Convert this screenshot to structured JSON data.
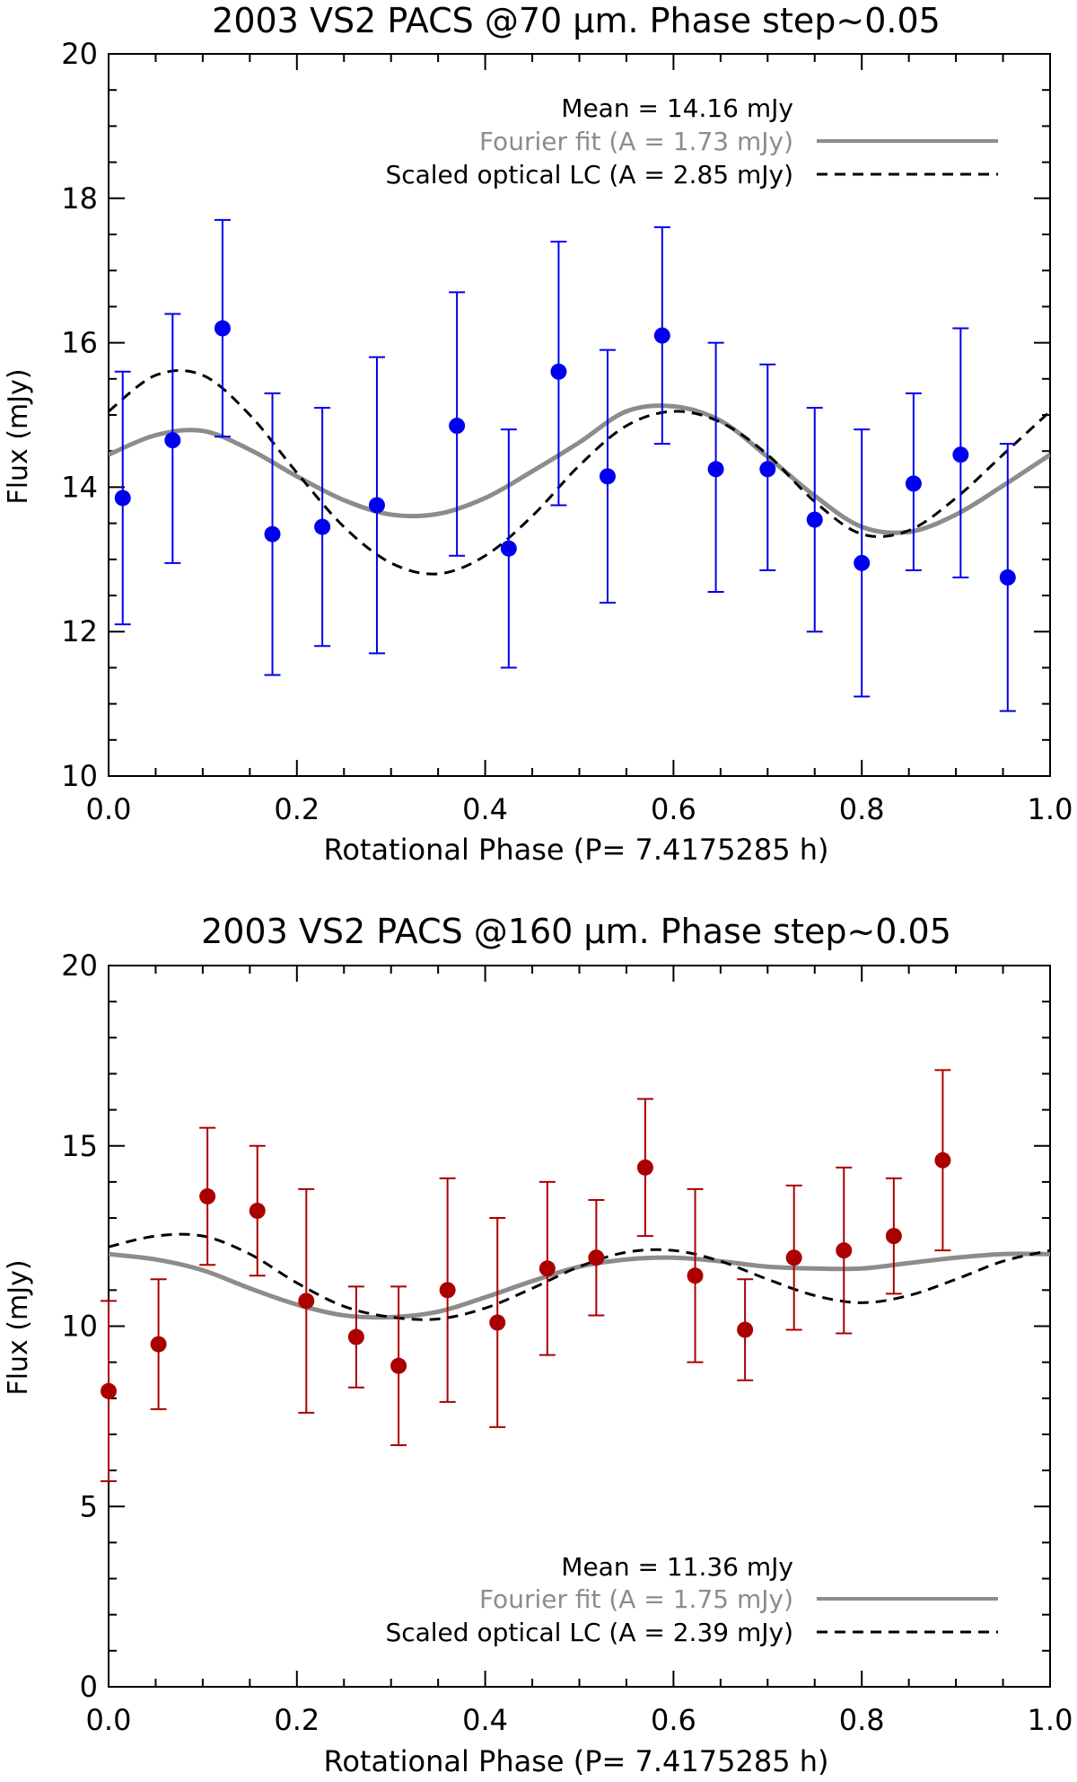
{
  "chart_data": [
    {
      "type": "scatter",
      "title": "2003 VS2 PACS @70 μm. Phase step~0.05",
      "xlabel": "Rotational Phase (P= 7.4175285 h)",
      "ylabel": "Flux (mJy)",
      "xlim": [
        0.0,
        1.0
      ],
      "ylim": [
        10,
        20
      ],
      "x_ticks": [
        0.0,
        0.2,
        0.4,
        0.6,
        0.8,
        1.0
      ],
      "x_tick_labels": [
        "0.0",
        "0.2",
        "0.4",
        "0.6",
        "0.8",
        "1.0"
      ],
      "y_ticks": [
        10,
        12,
        14,
        16,
        18,
        20
      ],
      "y_tick_labels": [
        "10",
        "12",
        "14",
        "16",
        "18",
        "20"
      ],
      "grid": false,
      "legend_position": "top-right",
      "legend": {
        "mean_label": "Mean = 14.16 mJy",
        "fourier_label": "Fourier fit (A = 1.73 mJy)",
        "optical_label": "Scaled optical LC (A = 2.85 mJy)"
      },
      "colors": {
        "points": "#0000ee",
        "fourier": "#8c8c8c",
        "optical": "#000000"
      },
      "series": [
        {
          "kind": "points_with_errors",
          "x": [
            0.015,
            0.068,
            0.121,
            0.174,
            0.227,
            0.285,
            0.37,
            0.425,
            0.478,
            0.53,
            0.588,
            0.645,
            0.7,
            0.75,
            0.8,
            0.855,
            0.905,
            0.955
          ],
          "y": [
            13.85,
            14.65,
            16.2,
            13.35,
            13.45,
            13.75,
            14.85,
            13.15,
            15.6,
            14.15,
            16.1,
            14.25,
            14.25,
            13.55,
            12.95,
            14.05,
            14.45,
            12.75
          ],
          "yerr_low": [
            12.1,
            12.95,
            14.7,
            11.4,
            11.8,
            11.7,
            13.05,
            11.5,
            13.75,
            12.4,
            14.6,
            12.55,
            12.85,
            12.0,
            11.1,
            12.85,
            12.75,
            10.9
          ],
          "yerr_high": [
            15.6,
            16.4,
            17.7,
            15.3,
            15.1,
            15.8,
            16.7,
            14.8,
            17.4,
            15.9,
            17.6,
            16.0,
            15.7,
            15.1,
            14.8,
            15.3,
            16.2,
            14.6
          ]
        },
        {
          "kind": "fourier_curve",
          "x": [
            0.0,
            0.05,
            0.1,
            0.15,
            0.2,
            0.25,
            0.3,
            0.35,
            0.4,
            0.45,
            0.5,
            0.55,
            0.6,
            0.65,
            0.7,
            0.75,
            0.8,
            0.85,
            0.9,
            0.95,
            1.0
          ],
          "y": [
            14.45,
            14.72,
            14.78,
            14.52,
            14.15,
            13.82,
            13.62,
            13.63,
            13.85,
            14.22,
            14.62,
            15.05,
            15.12,
            14.92,
            14.42,
            13.88,
            13.45,
            13.38,
            13.62,
            14.02,
            14.45
          ]
        },
        {
          "kind": "optical_curve",
          "x": [
            0.0,
            0.05,
            0.1,
            0.15,
            0.2,
            0.25,
            0.3,
            0.35,
            0.4,
            0.45,
            0.5,
            0.55,
            0.6,
            0.65,
            0.7,
            0.75,
            0.8,
            0.85,
            0.9,
            0.95,
            1.0
          ],
          "y": [
            15.05,
            15.55,
            15.55,
            15.0,
            14.2,
            13.45,
            12.95,
            12.8,
            13.05,
            13.6,
            14.3,
            14.85,
            15.05,
            14.9,
            14.45,
            13.8,
            13.35,
            13.4,
            13.85,
            14.45,
            15.05
          ]
        }
      ]
    },
    {
      "type": "scatter",
      "title": "2003 VS2 PACS @160 μm. Phase step~0.05",
      "xlabel": "Rotational Phase (P= 7.4175285 h)",
      "ylabel": "Flux (mJy)",
      "xlim": [
        0.0,
        1.0
      ],
      "ylim": [
        0,
        20
      ],
      "x_ticks": [
        0.0,
        0.2,
        0.4,
        0.6,
        0.8,
        1.0
      ],
      "x_tick_labels": [
        "0.0",
        "0.2",
        "0.4",
        "0.6",
        "0.8",
        "1.0"
      ],
      "y_ticks": [
        0,
        5,
        10,
        15,
        20
      ],
      "y_tick_labels": [
        "0",
        "5",
        "10",
        "15",
        "20"
      ],
      "grid": false,
      "legend_position": "bottom-right",
      "legend": {
        "mean_label": "Mean = 11.36 mJy",
        "fourier_label": "Fourier fit (A = 1.75 mJy)",
        "optical_label": "Scaled optical LC (A = 2.39 mJy)"
      },
      "colors": {
        "points": "#aa0000",
        "fourier": "#8c8c8c",
        "optical": "#000000"
      },
      "series": [
        {
          "kind": "points_with_errors",
          "x": [
            0.0,
            0.053,
            0.105,
            0.158,
            0.21,
            0.263,
            0.308,
            0.36,
            0.413,
            0.466,
            0.518,
            0.57,
            0.623,
            0.676,
            0.728,
            0.781,
            0.834,
            0.886
          ],
          "y": [
            8.2,
            9.5,
            13.6,
            13.2,
            10.7,
            9.7,
            8.9,
            11.0,
            10.1,
            11.6,
            11.9,
            14.4,
            11.4,
            9.9,
            11.9,
            12.1,
            12.5,
            14.6
          ],
          "yerr_low": [
            5.7,
            7.7,
            11.7,
            11.4,
            7.6,
            8.3,
            6.7,
            7.9,
            7.2,
            9.2,
            10.3,
            12.5,
            9.0,
            8.5,
            9.9,
            9.8,
            10.9,
            12.1
          ],
          "yerr_high": [
            10.7,
            11.3,
            15.5,
            15.0,
            13.8,
            11.1,
            11.1,
            14.1,
            13.0,
            14.0,
            13.5,
            16.3,
            13.8,
            11.3,
            13.9,
            14.4,
            14.1,
            17.1
          ]
        },
        {
          "kind": "fourier_curve",
          "x": [
            0.0,
            0.05,
            0.1,
            0.15,
            0.2,
            0.25,
            0.3,
            0.35,
            0.4,
            0.45,
            0.5,
            0.55,
            0.6,
            0.65,
            0.7,
            0.75,
            0.8,
            0.85,
            0.9,
            0.95,
            1.0
          ],
          "y": [
            12.0,
            11.85,
            11.55,
            11.05,
            10.6,
            10.3,
            10.25,
            10.4,
            10.8,
            11.25,
            11.65,
            11.85,
            11.9,
            11.8,
            11.65,
            11.6,
            11.6,
            11.75,
            11.9,
            12.0,
            12.0
          ],
          "note": ""
        },
        {
          "kind": "optical_curve",
          "x": [
            0.0,
            0.05,
            0.1,
            0.15,
            0.2,
            0.25,
            0.3,
            0.35,
            0.4,
            0.45,
            0.5,
            0.55,
            0.6,
            0.65,
            0.7,
            0.75,
            0.8,
            0.85,
            0.9,
            0.95,
            1.0
          ],
          "y": [
            12.2,
            12.5,
            12.5,
            12.0,
            11.2,
            10.55,
            10.25,
            10.2,
            10.5,
            11.05,
            11.65,
            12.05,
            12.1,
            11.8,
            11.3,
            10.85,
            10.65,
            10.85,
            11.3,
            11.8,
            12.1
          ]
        }
      ]
    }
  ]
}
